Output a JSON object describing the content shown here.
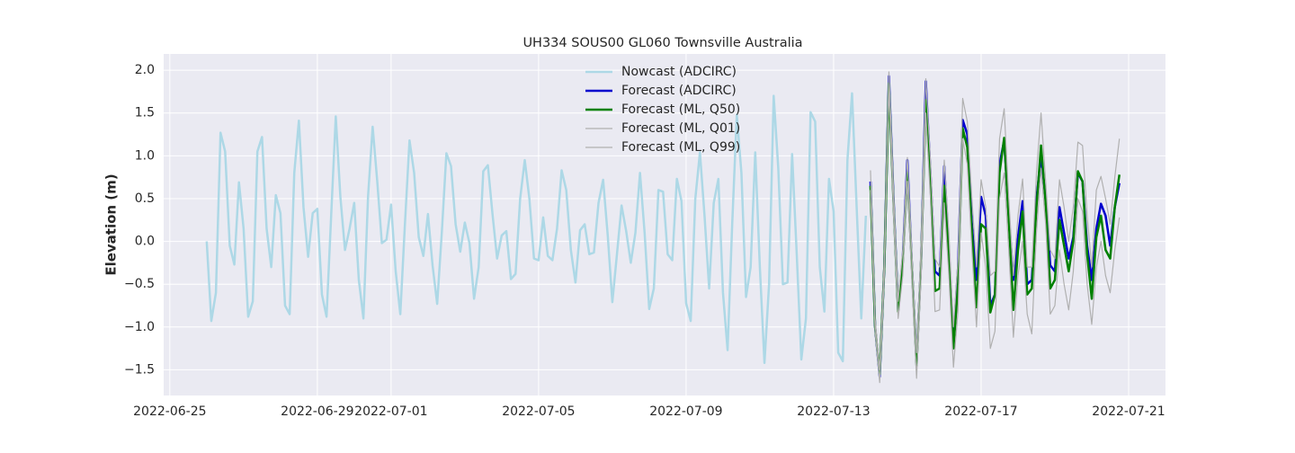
{
  "chart_data": {
    "type": "line",
    "title": "UH334 SOUS00 GL060 Townsville Australia",
    "y_label": "Elevation (m)",
    "xlim": [
      "2022-06-24T20:00",
      "2022-07-22T00:00"
    ],
    "xticks": [
      "2022-06-25",
      "2022-06-29",
      "2022-07-01",
      "2022-07-05",
      "2022-07-09",
      "2022-07-13",
      "2022-07-17",
      "2022-07-21"
    ],
    "ylim": [
      -1.8,
      2.19
    ],
    "yticks": [
      {
        "value": -1.5,
        "label": "−1.5"
      },
      {
        "value": -1.0,
        "label": "−1.0"
      },
      {
        "value": -0.5,
        "label": "−0.5"
      },
      {
        "value": 0,
        "label": "0.0"
      },
      0.5,
      {
        "value": 1.0,
        "label": "1.0"
      },
      1.5,
      {
        "value": 2.0,
        "label": "2.0"
      }
    ],
    "grid": true,
    "legend": "upper center",
    "series": [
      {
        "name": "Nowcast (ADCIRC)",
        "color": "#add8e6",
        "linewidth": 2.5,
        "x": [
          "2022-06-26T00:00",
          "2022-06-26T03:00",
          "2022-06-26T06:00",
          "2022-06-26T09:00",
          "2022-06-26T12:00",
          "2022-06-26T15:00",
          "2022-06-26T18:00",
          "2022-06-26T21:00",
          "2022-06-27T00:00",
          "2022-06-27T03:00",
          "2022-06-27T06:00",
          "2022-06-27T09:00",
          "2022-06-27T12:00",
          "2022-06-27T15:00",
          "2022-06-27T18:00",
          "2022-06-27T21:00",
          "2022-06-28T00:00",
          "2022-06-28T03:00",
          "2022-06-28T06:00",
          "2022-06-28T09:00",
          "2022-06-28T12:00",
          "2022-06-28T15:00",
          "2022-06-28T18:00",
          "2022-06-28T21:00",
          "2022-06-29T00:00",
          "2022-06-29T03:00",
          "2022-06-29T06:00",
          "2022-06-29T09:00",
          "2022-06-29T12:00",
          "2022-06-29T15:00",
          "2022-06-29T18:00",
          "2022-06-29T21:00",
          "2022-06-30T00:00",
          "2022-06-30T03:00",
          "2022-06-30T06:00",
          "2022-06-30T09:00",
          "2022-06-30T12:00",
          "2022-06-30T15:00",
          "2022-06-30T18:00",
          "2022-06-30T21:00",
          "2022-07-01T00:00",
          "2022-07-01T03:00",
          "2022-07-01T06:00",
          "2022-07-01T09:00",
          "2022-07-01T12:00",
          "2022-07-01T15:00",
          "2022-07-01T18:00",
          "2022-07-01T21:00",
          "2022-07-02T00:00",
          "2022-07-02T03:00",
          "2022-07-02T06:00",
          "2022-07-02T09:00",
          "2022-07-02T12:00",
          "2022-07-02T15:00",
          "2022-07-02T18:00",
          "2022-07-02T21:00",
          "2022-07-03T00:00",
          "2022-07-03T03:00",
          "2022-07-03T06:00",
          "2022-07-03T09:00",
          "2022-07-03T12:00",
          "2022-07-03T15:00",
          "2022-07-03T18:00",
          "2022-07-03T21:00",
          "2022-07-04T00:00",
          "2022-07-04T03:00",
          "2022-07-04T06:00",
          "2022-07-04T09:00",
          "2022-07-04T12:00",
          "2022-07-04T15:00",
          "2022-07-04T18:00",
          "2022-07-04T21:00",
          "2022-07-05T00:00",
          "2022-07-05T03:00",
          "2022-07-05T06:00",
          "2022-07-05T09:00",
          "2022-07-05T12:00",
          "2022-07-05T15:00",
          "2022-07-05T18:00",
          "2022-07-05T21:00",
          "2022-07-06T00:00",
          "2022-07-06T03:00",
          "2022-07-06T06:00",
          "2022-07-06T09:00",
          "2022-07-06T12:00",
          "2022-07-06T15:00",
          "2022-07-06T18:00",
          "2022-07-06T21:00",
          "2022-07-07T00:00",
          "2022-07-07T03:00",
          "2022-07-07T06:00",
          "2022-07-07T09:00",
          "2022-07-07T12:00",
          "2022-07-07T15:00",
          "2022-07-07T18:00",
          "2022-07-07T21:00",
          "2022-07-08T00:00",
          "2022-07-08T03:00",
          "2022-07-08T06:00",
          "2022-07-08T09:00",
          "2022-07-08T12:00",
          "2022-07-08T15:00",
          "2022-07-08T18:00",
          "2022-07-08T21:00",
          "2022-07-09T00:00",
          "2022-07-09T03:00",
          "2022-07-09T06:00",
          "2022-07-09T09:00",
          "2022-07-09T12:00",
          "2022-07-09T15:00",
          "2022-07-09T18:00",
          "2022-07-09T21:00",
          "2022-07-10T00:00",
          "2022-07-10T03:00",
          "2022-07-10T06:00",
          "2022-07-10T09:00",
          "2022-07-10T12:00",
          "2022-07-10T15:00",
          "2022-07-10T18:00",
          "2022-07-10T21:00",
          "2022-07-11T00:00",
          "2022-07-11T03:00",
          "2022-07-11T06:00",
          "2022-07-11T09:00",
          "2022-07-11T12:00",
          "2022-07-11T15:00",
          "2022-07-11T18:00",
          "2022-07-11T21:00",
          "2022-07-12T00:00",
          "2022-07-12T03:00",
          "2022-07-12T06:00",
          "2022-07-12T09:00",
          "2022-07-12T12:00",
          "2022-07-12T15:00",
          "2022-07-12T18:00",
          "2022-07-12T21:00",
          "2022-07-13T00:00",
          "2022-07-13T03:00",
          "2022-07-13T06:00",
          "2022-07-13T09:00",
          "2022-07-13T12:00",
          "2022-07-13T15:00",
          "2022-07-13T18:00",
          "2022-07-13T21:00"
        ],
        "values": [
          0,
          -0.93,
          -0.6,
          1.27,
          1.05,
          -0.05,
          -0.27,
          0.69,
          0.15,
          -0.88,
          -0.7,
          1.05,
          1.22,
          0.15,
          -0.3,
          0.54,
          0.33,
          -0.75,
          -0.85,
          0.8,
          1.41,
          0.4,
          -0.18,
          0.33,
          0.38,
          -0.62,
          -0.88,
          0.3,
          1.46,
          0.52,
          -0.1,
          0.15,
          0.45,
          -0.45,
          -0.9,
          0.52,
          1.34,
          0.7,
          -0.02,
          0.02,
          0.43,
          -0.35,
          -0.85,
          0.2,
          1.18,
          0.8,
          0.05,
          -0.17,
          0.32,
          -0.28,
          -0.73,
          0.1,
          1.03,
          0.88,
          0.2,
          -0.12,
          0.22,
          -0.02,
          -0.67,
          -0.3,
          0.82,
          0.89,
          0.32,
          -0.2,
          0.07,
          0.12,
          -0.44,
          -0.38,
          0.5,
          0.95,
          0.5,
          -0.2,
          -0.22,
          0.28,
          -0.17,
          -0.22,
          0.15,
          0.83,
          0.6,
          -0.1,
          -0.48,
          0.13,
          0.2,
          -0.15,
          -0.13,
          0.45,
          0.72,
          0.07,
          -0.71,
          -0.15,
          0.42,
          0.12,
          -0.25,
          0.1,
          0.8,
          0.1,
          -0.79,
          -0.55,
          0.6,
          0.58,
          -0.15,
          -0.22,
          0.73,
          0.47,
          -0.72,
          -0.93,
          0.5,
          1.04,
          0.3,
          -0.55,
          0.45,
          0.73,
          -0.6,
          -1.27,
          0.2,
          1.48,
          0.8,
          -0.65,
          -0.3,
          1.04,
          -0.3,
          -1.42,
          -0.5,
          1.7,
          0.85,
          -0.5,
          -0.48,
          1.02,
          -0.15,
          -1.38,
          -0.9,
          1.51,
          1.4,
          -0.3,
          -0.82,
          0.73,
          0.35,
          -1.3,
          -1.4,
          0.95,
          1.73,
          0.4,
          -0.9,
          0.3
        ]
      },
      {
        "name": "Forecast (ADCIRC)",
        "color": "#0000cd",
        "linewidth": 2.5,
        "x": [
          "2022-07-14T00:00",
          "2022-07-14T03:00",
          "2022-07-14T06:00",
          "2022-07-14T09:00",
          "2022-07-14T12:00",
          "2022-07-14T15:00",
          "2022-07-14T18:00",
          "2022-07-14T21:00",
          "2022-07-15T00:00",
          "2022-07-15T03:00",
          "2022-07-15T06:00",
          "2022-07-15T09:00",
          "2022-07-15T12:00",
          "2022-07-15T15:00",
          "2022-07-15T18:00",
          "2022-07-15T21:00",
          "2022-07-16T00:00",
          "2022-07-16T03:00",
          "2022-07-16T06:00",
          "2022-07-16T09:00",
          "2022-07-16T12:00",
          "2022-07-16T15:00",
          "2022-07-16T18:00",
          "2022-07-16T21:00",
          "2022-07-17T00:00",
          "2022-07-17T03:00",
          "2022-07-17T06:00",
          "2022-07-17T09:00",
          "2022-07-17T12:00",
          "2022-07-17T15:00",
          "2022-07-17T18:00",
          "2022-07-17T21:00",
          "2022-07-18T00:00",
          "2022-07-18T03:00",
          "2022-07-18T06:00",
          "2022-07-18T09:00",
          "2022-07-18T12:00",
          "2022-07-18T15:00",
          "2022-07-18T18:00",
          "2022-07-18T21:00",
          "2022-07-19T00:00",
          "2022-07-19T03:00",
          "2022-07-19T06:00",
          "2022-07-19T09:00",
          "2022-07-19T12:00",
          "2022-07-19T15:00",
          "2022-07-19T18:00",
          "2022-07-19T21:00",
          "2022-07-20T00:00",
          "2022-07-20T03:00",
          "2022-07-20T06:00",
          "2022-07-20T09:00",
          "2022-07-20T12:00",
          "2022-07-20T15:00",
          "2022-07-20T18:00"
        ],
        "values": [
          0.7,
          -1.0,
          -1.58,
          -0.3,
          1.93,
          0.5,
          -0.8,
          -0.2,
          0.95,
          -0.3,
          -1.42,
          -0.2,
          1.87,
          0.8,
          -0.35,
          -0.4,
          0.88,
          -0.1,
          -1.15,
          -0.3,
          1.42,
          1.25,
          0.2,
          -0.45,
          0.52,
          0.3,
          -0.75,
          -0.62,
          0.9,
          1.18,
          0.3,
          -0.45,
          0.05,
          0.47,
          -0.5,
          -0.45,
          0.5,
          1.0,
          0.5,
          -0.28,
          -0.35,
          0.4,
          0.1,
          -0.2,
          0.05,
          0.8,
          0.7,
          -0.05,
          -0.45,
          0.15,
          0.44,
          0.3,
          -0.05,
          0.4,
          0.68
        ]
      },
      {
        "name": "Forecast (ML, Q50)",
        "color": "#008000",
        "linewidth": 2.5,
        "x": [
          "2022-07-14T00:00",
          "2022-07-14T03:00",
          "2022-07-14T06:00",
          "2022-07-14T09:00",
          "2022-07-14T12:00",
          "2022-07-14T15:00",
          "2022-07-14T18:00",
          "2022-07-14T21:00",
          "2022-07-15T00:00",
          "2022-07-15T03:00",
          "2022-07-15T06:00",
          "2022-07-15T09:00",
          "2022-07-15T12:00",
          "2022-07-15T15:00",
          "2022-07-15T18:00",
          "2022-07-15T21:00",
          "2022-07-16T00:00",
          "2022-07-16T03:00",
          "2022-07-16T06:00",
          "2022-07-16T09:00",
          "2022-07-16T12:00",
          "2022-07-16T15:00",
          "2022-07-16T18:00",
          "2022-07-16T21:00",
          "2022-07-17T00:00",
          "2022-07-17T03:00",
          "2022-07-17T06:00",
          "2022-07-17T09:00",
          "2022-07-17T12:00",
          "2022-07-17T15:00",
          "2022-07-17T18:00",
          "2022-07-17T21:00",
          "2022-07-18T00:00",
          "2022-07-18T03:00",
          "2022-07-18T06:00",
          "2022-07-18T09:00",
          "2022-07-18T12:00",
          "2022-07-18T15:00",
          "2022-07-18T18:00",
          "2022-07-18T21:00",
          "2022-07-19T00:00",
          "2022-07-19T03:00",
          "2022-07-19T06:00",
          "2022-07-19T09:00",
          "2022-07-19T12:00",
          "2022-07-19T15:00",
          "2022-07-19T18:00",
          "2022-07-19T21:00",
          "2022-07-20T00:00",
          "2022-07-20T03:00",
          "2022-07-20T06:00",
          "2022-07-20T09:00",
          "2022-07-20T12:00",
          "2022-07-20T15:00",
          "2022-07-20T18:00"
        ],
        "values": [
          0.65,
          -1.0,
          -1.55,
          -0.3,
          1.85,
          0.45,
          -0.82,
          -0.25,
          0.8,
          -0.3,
          -1.45,
          -0.2,
          1.65,
          0.7,
          -0.58,
          -0.55,
          0.65,
          -0.2,
          -1.25,
          -0.5,
          1.32,
          1.1,
          0.1,
          -0.77,
          0.2,
          0.15,
          -0.83,
          -0.62,
          0.8,
          1.21,
          0.25,
          -0.8,
          -0.1,
          0.35,
          -0.62,
          -0.55,
          0.4,
          1.12,
          0.45,
          -0.55,
          -0.45,
          0.25,
          -0.05,
          -0.35,
          0.0,
          0.82,
          0.7,
          -0.15,
          -0.67,
          0.05,
          0.3,
          -0.1,
          -0.2,
          0.4,
          0.78
        ]
      },
      {
        "name": "Forecast (ML, Q01)",
        "color": "#b0b0b0",
        "linewidth": 1.2,
        "x": [
          "2022-07-14T00:00",
          "2022-07-14T03:00",
          "2022-07-14T06:00",
          "2022-07-14T09:00",
          "2022-07-14T12:00",
          "2022-07-14T15:00",
          "2022-07-14T18:00",
          "2022-07-14T21:00",
          "2022-07-15T00:00",
          "2022-07-15T03:00",
          "2022-07-15T06:00",
          "2022-07-15T09:00",
          "2022-07-15T12:00",
          "2022-07-15T15:00",
          "2022-07-15T18:00",
          "2022-07-15T21:00",
          "2022-07-16T00:00",
          "2022-07-16T03:00",
          "2022-07-16T06:00",
          "2022-07-16T09:00",
          "2022-07-16T12:00",
          "2022-07-16T15:00",
          "2022-07-16T18:00",
          "2022-07-16T21:00",
          "2022-07-17T00:00",
          "2022-07-17T03:00",
          "2022-07-17T06:00",
          "2022-07-17T09:00",
          "2022-07-17T12:00",
          "2022-07-17T15:00",
          "2022-07-17T18:00",
          "2022-07-17T21:00",
          "2022-07-18T00:00",
          "2022-07-18T03:00",
          "2022-07-18T06:00",
          "2022-07-18T09:00",
          "2022-07-18T12:00",
          "2022-07-18T15:00",
          "2022-07-18T18:00",
          "2022-07-18T21:00",
          "2022-07-19T00:00",
          "2022-07-19T03:00",
          "2022-07-19T06:00",
          "2022-07-19T09:00",
          "2022-07-19T12:00",
          "2022-07-19T15:00",
          "2022-07-19T18:00",
          "2022-07-19T21:00",
          "2022-07-20T00:00",
          "2022-07-20T03:00",
          "2022-07-20T06:00",
          "2022-07-20T09:00",
          "2022-07-20T12:00",
          "2022-07-20T15:00",
          "2022-07-20T18:00"
        ],
        "values": [
          0.6,
          -1.05,
          -1.65,
          -0.4,
          1.8,
          0.3,
          -0.9,
          -0.4,
          0.7,
          -0.5,
          -1.6,
          -0.4,
          1.5,
          0.5,
          -0.82,
          -0.8,
          0.45,
          -0.4,
          -1.47,
          -0.8,
          1.2,
          0.9,
          -0.1,
          -1.0,
          0.1,
          -0.3,
          -1.25,
          -1.05,
          0.5,
          0.8,
          -0.1,
          -1.12,
          -0.4,
          0.0,
          -0.85,
          -1.08,
          0.1,
          0.85,
          0.2,
          -0.85,
          -0.75,
          -0.1,
          -0.5,
          -0.8,
          -0.35,
          0.5,
          0.35,
          -0.5,
          -0.97,
          -0.3,
          0.0,
          -0.4,
          -0.6,
          -0.1,
          0.28
        ]
      },
      {
        "name": "Forecast (ML, Q99)",
        "color": "#b0b0b0",
        "linewidth": 1.2,
        "x": [
          "2022-07-14T00:00",
          "2022-07-14T03:00",
          "2022-07-14T06:00",
          "2022-07-14T09:00",
          "2022-07-14T12:00",
          "2022-07-14T15:00",
          "2022-07-14T18:00",
          "2022-07-14T21:00",
          "2022-07-15T00:00",
          "2022-07-15T03:00",
          "2022-07-15T06:00",
          "2022-07-15T09:00",
          "2022-07-15T12:00",
          "2022-07-15T15:00",
          "2022-07-15T18:00",
          "2022-07-15T21:00",
          "2022-07-16T00:00",
          "2022-07-16T03:00",
          "2022-07-16T06:00",
          "2022-07-16T09:00",
          "2022-07-16T12:00",
          "2022-07-16T15:00",
          "2022-07-16T18:00",
          "2022-07-16T21:00",
          "2022-07-17T00:00",
          "2022-07-17T03:00",
          "2022-07-17T06:00",
          "2022-07-17T09:00",
          "2022-07-17T12:00",
          "2022-07-17T15:00",
          "2022-07-17T18:00",
          "2022-07-17T21:00",
          "2022-07-18T00:00",
          "2022-07-18T03:00",
          "2022-07-18T06:00",
          "2022-07-18T09:00",
          "2022-07-18T12:00",
          "2022-07-18T15:00",
          "2022-07-18T18:00",
          "2022-07-18T21:00",
          "2022-07-19T00:00",
          "2022-07-19T03:00",
          "2022-07-19T06:00",
          "2022-07-19T09:00",
          "2022-07-19T12:00",
          "2022-07-19T15:00",
          "2022-07-19T18:00",
          "2022-07-19T21:00",
          "2022-07-20T00:00",
          "2022-07-20T03:00",
          "2022-07-20T06:00",
          "2022-07-20T09:00",
          "2022-07-20T12:00",
          "2022-07-20T15:00",
          "2022-07-20T18:00"
        ],
        "values": [
          0.83,
          -0.9,
          -1.5,
          -0.2,
          1.98,
          0.6,
          -0.7,
          -0.1,
          0.98,
          -0.15,
          -1.3,
          0.0,
          1.9,
          0.95,
          -0.2,
          -0.3,
          0.95,
          0.1,
          -1.0,
          -0.2,
          1.67,
          1.4,
          0.5,
          -0.3,
          0.72,
          0.4,
          -0.4,
          -0.35,
          1.2,
          1.55,
          0.5,
          -0.4,
          0.3,
          0.73,
          -0.3,
          -0.3,
          0.8,
          1.5,
          0.7,
          -0.1,
          -0.2,
          0.72,
          0.4,
          0.0,
          0.4,
          1.16,
          1.12,
          0.3,
          -0.3,
          0.6,
          0.76,
          0.5,
          0.2,
          0.75,
          1.2
        ]
      }
    ]
  }
}
